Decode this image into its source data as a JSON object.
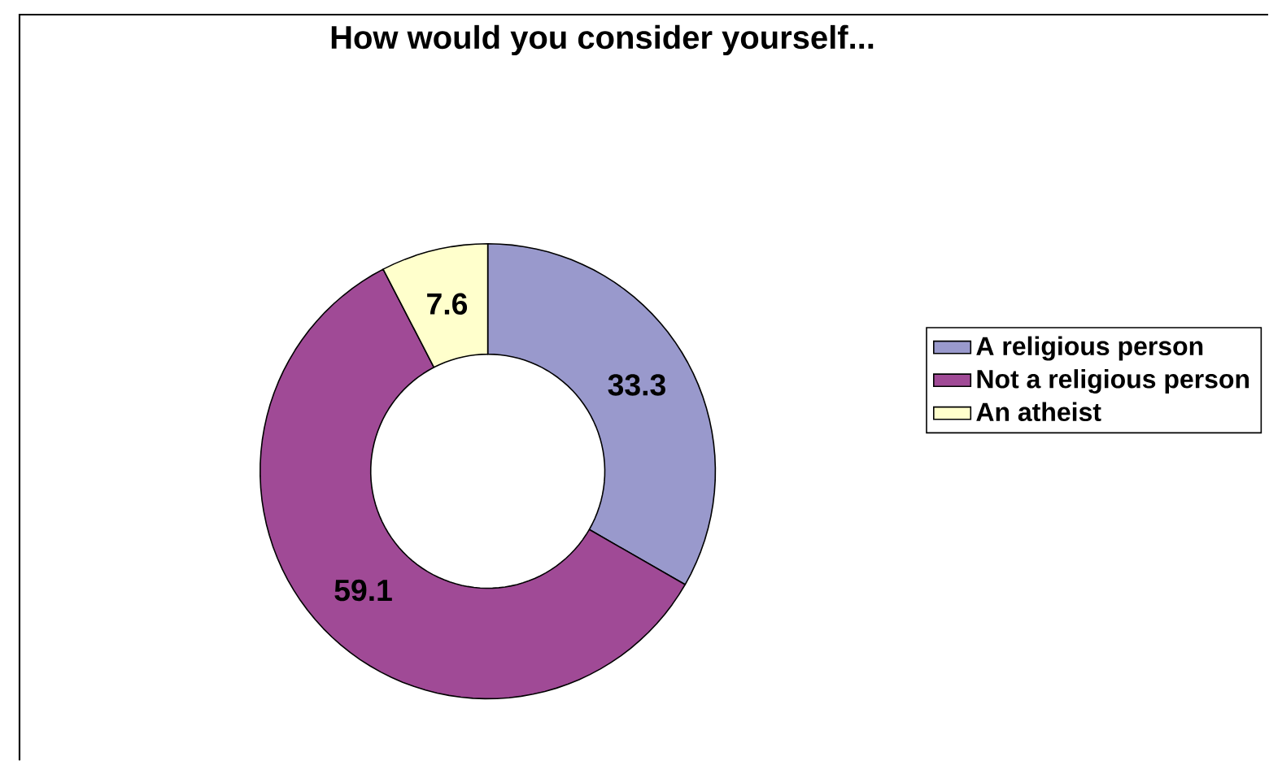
{
  "chart_data": {
    "type": "donut",
    "title": "How would you consider yourself...",
    "categories": [
      "A religious person",
      "Not a religious person",
      "An atheist"
    ],
    "values": [
      33.3,
      59.1,
      7.6
    ],
    "colors": [
      "#9999cc",
      "#a04a96",
      "#ffffcc"
    ],
    "data_labels": true,
    "legend": "right"
  }
}
